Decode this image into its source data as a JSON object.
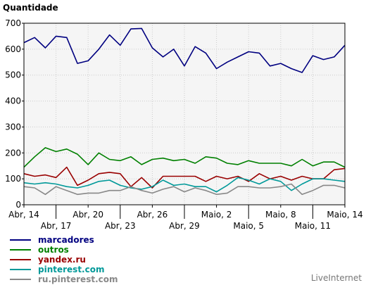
{
  "chart_data": {
    "type": "line",
    "title": "Quantidade",
    "credit": "LiveInternet",
    "ylim": [
      0,
      700
    ],
    "yticks": [
      0,
      100,
      200,
      300,
      400,
      500,
      600,
      700
    ],
    "x_tick_labels": [
      "Abr, 14",
      "Abr, 17",
      "Abr, 20",
      "Abr, 23",
      "Abr, 26",
      "Abr, 29",
      "Maio, 2",
      "Maio, 5",
      "Maio, 8",
      "Maio, 11",
      "Maio, 14"
    ],
    "x_tick_rows": [
      0,
      1,
      0,
      1,
      0,
      1,
      0,
      1,
      0,
      1,
      0
    ],
    "x_count": 31,
    "grid": true,
    "legend_position": "bottom-left",
    "series": [
      {
        "name": "marcadores",
        "color": "#000080",
        "values": [
          625,
          645,
          605,
          650,
          645,
          545,
          555,
          600,
          655,
          615,
          678,
          680,
          605,
          570,
          600,
          535,
          610,
          585,
          525,
          550,
          570,
          590,
          585,
          535,
          545,
          525,
          510,
          575,
          560,
          570,
          615
        ]
      },
      {
        "name": "outros",
        "color": "#008000",
        "values": [
          145,
          185,
          220,
          205,
          215,
          195,
          155,
          200,
          175,
          170,
          185,
          155,
          175,
          180,
          170,
          175,
          160,
          185,
          180,
          160,
          155,
          170,
          160,
          160,
          160,
          150,
          175,
          150,
          165,
          165,
          145
        ]
      },
      {
        "name": "yandex.ru",
        "color": "#990000",
        "values": [
          120,
          110,
          115,
          105,
          145,
          75,
          95,
          120,
          125,
          120,
          70,
          105,
          65,
          110,
          110,
          110,
          110,
          90,
          110,
          100,
          110,
          90,
          120,
          100,
          110,
          95,
          110,
          100,
          100,
          135,
          140
        ]
      },
      {
        "name": "pinterest.com",
        "color": "#009999",
        "values": [
          85,
          80,
          85,
          80,
          70,
          65,
          75,
          90,
          95,
          75,
          65,
          60,
          70,
          95,
          75,
          80,
          70,
          70,
          50,
          75,
          105,
          95,
          80,
          100,
          90,
          55,
          80,
          100,
          100,
          95,
          90
        ]
      },
      {
        "name": "ru.pinterest.com",
        "color": "#888888",
        "values": [
          70,
          65,
          40,
          70,
          55,
          40,
          45,
          45,
          55,
          55,
          70,
          55,
          45,
          60,
          70,
          50,
          65,
          55,
          40,
          45,
          70,
          70,
          65,
          65,
          70,
          80,
          40,
          55,
          75,
          75,
          65
        ]
      }
    ]
  }
}
